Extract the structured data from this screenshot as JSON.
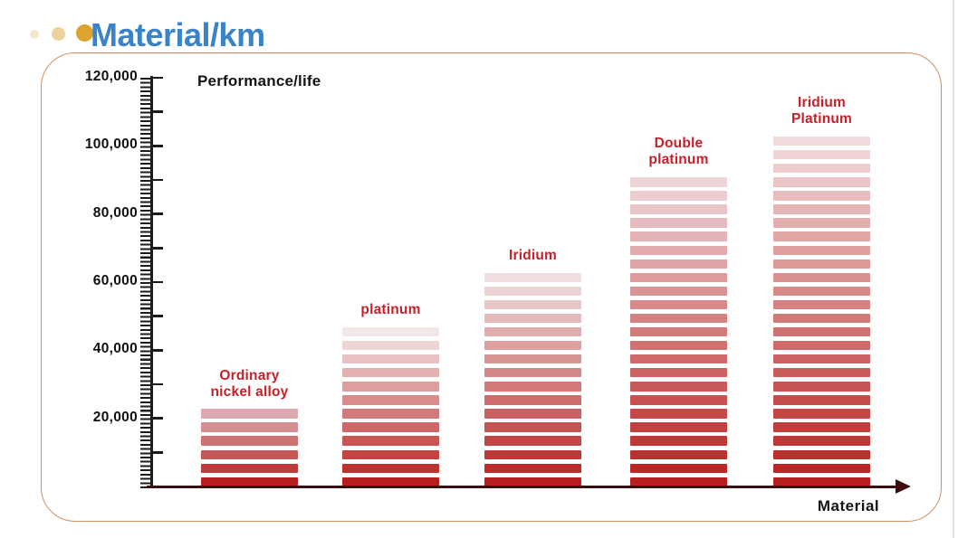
{
  "header": {
    "title": "Material/km",
    "title_color": "#3b83c7",
    "dot_colors": [
      "#f5e7cb",
      "#edd29b",
      "#dfa22f"
    ]
  },
  "chart_data": {
    "type": "bar",
    "title": "Performance/life",
    "xlabel": "Material",
    "ylabel": "Performance/life (km)",
    "ylim": [
      0,
      120000
    ],
    "y_label_step": 20000,
    "y_medium_tick_step": 10000,
    "y_minor_tick_step": 1250,
    "y_tick_labels": [
      "20,000",
      "40,000",
      "60,000",
      "80,000",
      "100,000",
      "120,000"
    ],
    "grid": false,
    "legend_position": "none",
    "stripe_unit": 4000,
    "categories": [
      "Ordinary nickel alloy",
      "platinum",
      "Iridium",
      "Double platinum",
      "Iridium Platinum"
    ],
    "values": [
      24000,
      48000,
      64000,
      92000,
      104000
    ],
    "bars": [
      {
        "label_lines": [
          "Ordinary",
          "nickel alloy"
        ],
        "value": 24000,
        "top_color": "#dcaaae"
      },
      {
        "label_lines": [
          "platinum"
        ],
        "value": 48000,
        "top_color": "#f3e6e7"
      },
      {
        "label_lines": [
          "Iridium"
        ],
        "value": 64000,
        "top_color": "#f0dfe1"
      },
      {
        "label_lines": [
          "Double",
          "platinum"
        ],
        "value": 92000,
        "top_color": "#eed4d7"
      },
      {
        "label_lines": [
          "Iridium",
          "Platinum"
        ],
        "value": 104000,
        "top_color": "#f2dbdc"
      }
    ],
    "bar_bottom_color": "#b7201e",
    "bar_label_color": "#c8202a",
    "axis_arrow_color": "#3f0d0d",
    "ruler_color": "#1c1c1c"
  }
}
